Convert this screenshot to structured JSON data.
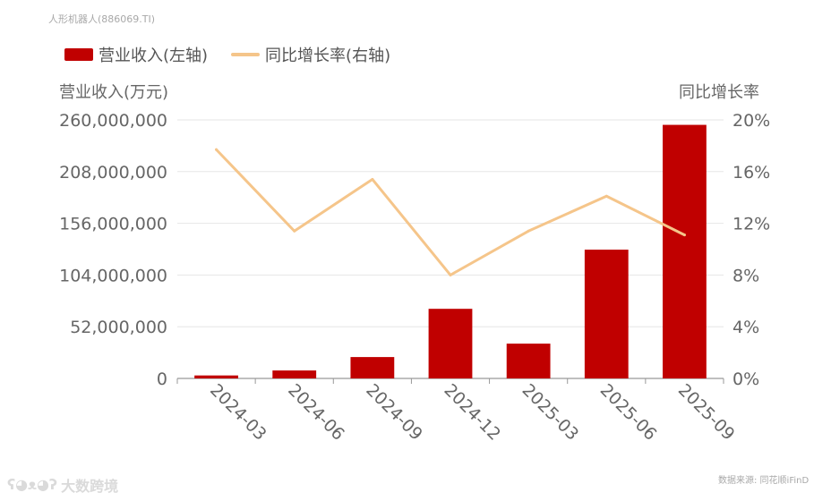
{
  "header": {
    "title": "人形机器人(886069.TI)"
  },
  "legend": {
    "bar_label": "营业收入(左轴)",
    "line_label": "同比增长率(右轴)"
  },
  "footer": {
    "source": "数据来源: 同花顺iFinD",
    "watermark": "大数跨境"
  },
  "colors": {
    "bar": "#c00000",
    "line": "#f5c58a"
  },
  "chart_data": {
    "type": "bar",
    "categories": [
      "2024-03",
      "2024-06",
      "2024-09",
      "2024-12",
      "2025-03",
      "2025-06",
      "2025-09"
    ],
    "series": [
      {
        "name": "营业收入(左轴)",
        "type": "bar",
        "axis": "left",
        "values": [
          3000000,
          8000000,
          21500000,
          70000000,
          35000000,
          129500000,
          255000000
        ]
      },
      {
        "name": "同比增长率(右轴)",
        "type": "line",
        "axis": "right",
        "values": [
          17.7,
          11.4,
          15.4,
          8.0,
          11.4,
          14.1,
          11.1
        ]
      }
    ],
    "ylabel": "营业收入(万元)",
    "y2label": "同比增长率",
    "ylim": [
      0,
      260000000
    ],
    "y2lim": [
      0,
      20
    ],
    "yticks": [
      "0",
      "52,000,000",
      "104,000,000",
      "156,000,000",
      "208,000,000",
      "260,000,000"
    ],
    "y2ticks": [
      "0%",
      "4%",
      "8%",
      "12%",
      "16%",
      "20%"
    ],
    "legend_position": "top-left",
    "grid": true
  }
}
